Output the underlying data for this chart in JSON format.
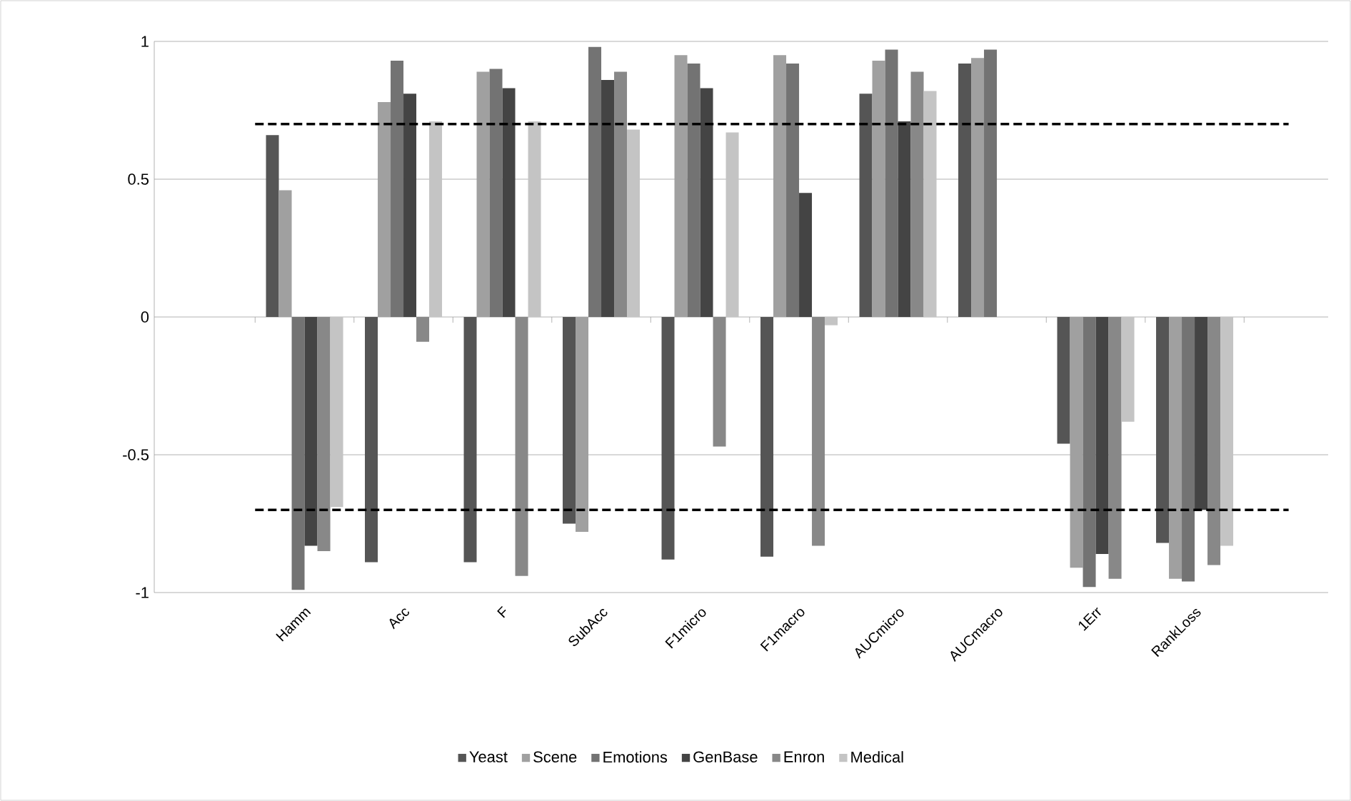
{
  "chart_data": {
    "type": "bar",
    "categories": [
      "Hamm",
      "Acc",
      "F",
      "SubAcc",
      "F1micro",
      "F1macro",
      "AUCmicro",
      "AUCmacro",
      "1Err",
      "RankLoss"
    ],
    "series": [
      {
        "name": "Yeast",
        "color": "#555555",
        "values": [
          0.66,
          -0.89,
          -0.89,
          -0.75,
          -0.88,
          -0.87,
          0.81,
          0.92,
          -0.46,
          -0.82
        ]
      },
      {
        "name": "Scene",
        "color": "#a0a0a0",
        "values": [
          0.46,
          0.78,
          0.89,
          -0.78,
          0.95,
          0.95,
          0.93,
          0.94,
          -0.91,
          -0.95
        ]
      },
      {
        "name": "Emotions",
        "color": "#737373",
        "values": [
          -0.99,
          0.93,
          0.9,
          0.98,
          0.92,
          0.92,
          0.97,
          0.97,
          -0.98,
          -0.96
        ]
      },
      {
        "name": "GenBase",
        "color": "#444444",
        "values": [
          -0.83,
          0.81,
          0.83,
          0.86,
          0.83,
          0.45,
          0.71,
          null,
          -0.86,
          -0.7
        ]
      },
      {
        "name": "Enron",
        "color": "#888888",
        "values": [
          -0.85,
          -0.09,
          -0.94,
          0.89,
          -0.47,
          -0.83,
          0.89,
          null,
          -0.95,
          -0.9
        ]
      },
      {
        "name": "Medical",
        "color": "#c4c4c4",
        "values": [
          -0.69,
          0.71,
          0.71,
          0.68,
          0.67,
          -0.03,
          0.82,
          null,
          -0.38,
          -0.83
        ]
      }
    ],
    "ylim": [
      -1,
      1
    ],
    "yticks": [
      -1,
      -0.5,
      0,
      0.5,
      1
    ],
    "grid": "y",
    "legend": "bottom",
    "ref_lines": [
      {
        "axis": "y",
        "value": 0.7,
        "color": "#000000",
        "line_style": "dashed"
      },
      {
        "axis": "y",
        "value": -0.7,
        "color": "#000000",
        "line_style": "dashed"
      }
    ]
  }
}
